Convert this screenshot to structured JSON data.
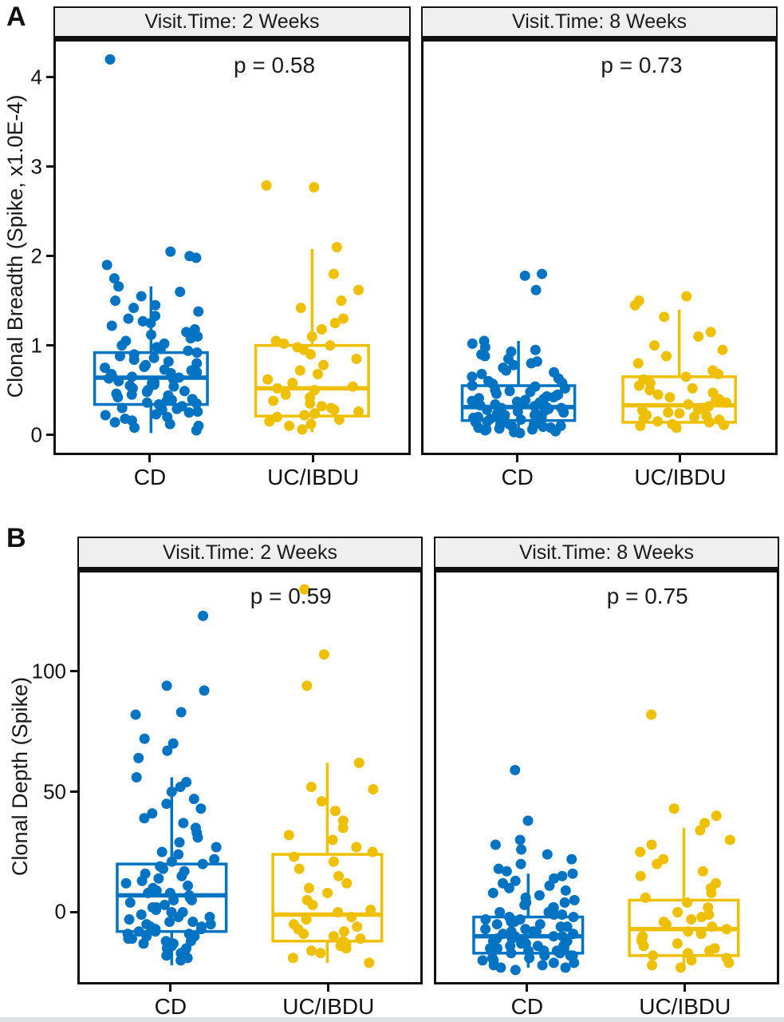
{
  "chart_data": [
    {
      "type": "boxplot",
      "panel_label": "A",
      "ylabel": "Clonal Breadth (Spike, x1.0E-4)",
      "categories": [
        "CD",
        "UC/IBDU"
      ],
      "group_colors": {
        "CD": "#0073C2",
        "UC/IBDU": "#EFC000"
      },
      "group_centers": [
        0.27,
        0.727
      ],
      "y_ticks": [
        0,
        1,
        2,
        3,
        4
      ],
      "y_tick_labels": [
        "0",
        "1",
        "2",
        "3",
        "4"
      ],
      "y_domain": [
        -0.2,
        4.4
      ],
      "grid": false,
      "legend": "none",
      "facets": [
        {
          "label": "Visit.Time: 2 Weeks",
          "p_label": "p = 0.58",
          "groups": [
            {
              "name": "CD",
              "box": {
                "whisker_low": 0.02,
                "q1": 0.34,
                "median": 0.64,
                "q3": 0.92,
                "whisker_high": 1.66
              },
              "points": [
                4.2,
                2.05,
                2.0,
                1.98,
                1.9,
                1.75,
                1.66,
                1.6,
                1.55,
                1.5,
                1.45,
                1.42,
                1.38,
                1.33,
                1.3,
                1.27,
                1.25,
                1.22,
                1.18,
                1.15,
                1.12,
                1.1,
                1.08,
                1.05,
                1.02,
                1.0,
                0.98,
                0.96,
                0.94,
                0.92,
                0.9,
                0.88,
                0.86,
                0.84,
                0.82,
                0.8,
                0.78,
                0.76,
                0.75,
                0.73,
                0.72,
                0.7,
                0.69,
                0.68,
                0.66,
                0.65,
                0.64,
                0.63,
                0.62,
                0.6,
                0.59,
                0.58,
                0.56,
                0.55,
                0.54,
                0.52,
                0.5,
                0.49,
                0.48,
                0.46,
                0.45,
                0.44,
                0.42,
                0.4,
                0.39,
                0.38,
                0.36,
                0.35,
                0.34,
                0.32,
                0.3,
                0.29,
                0.28,
                0.26,
                0.25,
                0.23,
                0.22,
                0.2,
                0.18,
                0.16,
                0.14,
                0.12,
                0.1,
                0.08,
                0.05
              ]
            },
            {
              "name": "UC/IBDU",
              "box": {
                "whisker_low": 0.03,
                "q1": 0.21,
                "median": 0.52,
                "q3": 1.0,
                "whisker_high": 2.08
              },
              "points": [
                2.79,
                2.77,
                2.1,
                1.8,
                1.62,
                1.5,
                1.42,
                1.3,
                1.25,
                1.18,
                1.1,
                1.05,
                1.02,
                1.0,
                0.98,
                0.95,
                0.9,
                0.85,
                0.78,
                0.72,
                0.68,
                0.62,
                0.58,
                0.54,
                0.52,
                0.5,
                0.45,
                0.42,
                0.38,
                0.35,
                0.32,
                0.3,
                0.28,
                0.26,
                0.24,
                0.22,
                0.2,
                0.17,
                0.15,
                0.12,
                0.1,
                0.06
              ]
            }
          ]
        },
        {
          "label": "Visit.Time: 8 Weeks",
          "p_label": "p = 0.73",
          "groups": [
            {
              "name": "CD",
              "box": {
                "whisker_low": 0.02,
                "q1": 0.16,
                "median": 0.31,
                "q3": 0.55,
                "whisker_high": 1.05
              },
              "points": [
                1.8,
                1.78,
                1.62,
                1.05,
                1.02,
                0.98,
                0.95,
                0.93,
                0.9,
                0.88,
                0.85,
                0.82,
                0.8,
                0.78,
                0.75,
                0.72,
                0.7,
                0.68,
                0.65,
                0.63,
                0.6,
                0.58,
                0.57,
                0.55,
                0.54,
                0.52,
                0.5,
                0.49,
                0.48,
                0.46,
                0.45,
                0.44,
                0.43,
                0.42,
                0.41,
                0.4,
                0.39,
                0.38,
                0.37,
                0.36,
                0.35,
                0.34,
                0.33,
                0.32,
                0.31,
                0.3,
                0.3,
                0.29,
                0.28,
                0.27,
                0.26,
                0.26,
                0.25,
                0.24,
                0.23,
                0.22,
                0.22,
                0.21,
                0.2,
                0.2,
                0.19,
                0.18,
                0.18,
                0.17,
                0.16,
                0.16,
                0.15,
                0.14,
                0.14,
                0.13,
                0.12,
                0.12,
                0.11,
                0.1,
                0.1,
                0.09,
                0.08,
                0.08,
                0.07,
                0.06,
                0.06,
                0.05,
                0.04,
                0.03,
                0.02
              ]
            },
            {
              "name": "UC/IBDU",
              "box": {
                "whisker_low": 0.03,
                "q1": 0.14,
                "median": 0.33,
                "q3": 0.65,
                "whisker_high": 1.4
              },
              "points": [
                1.55,
                1.5,
                1.45,
                1.32,
                1.15,
                1.1,
                1.0,
                0.95,
                0.88,
                0.8,
                0.72,
                0.68,
                0.65,
                0.62,
                0.58,
                0.55,
                0.52,
                0.5,
                0.47,
                0.45,
                0.42,
                0.4,
                0.38,
                0.36,
                0.34,
                0.32,
                0.3,
                0.28,
                0.27,
                0.25,
                0.24,
                0.22,
                0.21,
                0.2,
                0.18,
                0.17,
                0.15,
                0.14,
                0.12,
                0.11,
                0.1,
                0.08
              ]
            }
          ]
        }
      ]
    },
    {
      "type": "boxplot",
      "panel_label": "B",
      "ylabel": "Clonal Depth (Spike)",
      "categories": [
        "CD",
        "UC/IBDU"
      ],
      "group_colors": {
        "CD": "#0073C2",
        "UC/IBDU": "#EFC000"
      },
      "group_centers": [
        0.27,
        0.727
      ],
      "y_ticks": [
        0,
        50,
        100
      ],
      "y_tick_labels": [
        "0",
        "50",
        "100"
      ],
      "y_domain": [
        -29,
        141
      ],
      "grid": false,
      "legend": "none",
      "facets": [
        {
          "label": "Visit.Time: 2 Weeks",
          "p_label": "p = 0.59",
          "groups": [
            {
              "name": "CD",
              "box": {
                "whisker_low": -22,
                "q1": -8,
                "median": 7,
                "q3": 20,
                "whisker_high": 56
              },
              "points": [
                123,
                94,
                92,
                83,
                82,
                72,
                70,
                67,
                64,
                56,
                54,
                52,
                50,
                47,
                45,
                43,
                41,
                39,
                37,
                35,
                33,
                31,
                29,
                27,
                25,
                24,
                22,
                21,
                20,
                19,
                18,
                17,
                16,
                15,
                14,
                13,
                12,
                11,
                10,
                9,
                8,
                8,
                7,
                6,
                5,
                5,
                4,
                3,
                2,
                2,
                1,
                0,
                0,
                -1,
                -2,
                -2,
                -3,
                -4,
                -4,
                -5,
                -5,
                -6,
                -6,
                -7,
                -7,
                -8,
                -8,
                -9,
                -9,
                -10,
                -10,
                -11,
                -11,
                -12,
                -12,
                -13,
                -13,
                -14,
                -15,
                -15,
                -16,
                -17,
                -18,
                -19,
                -20
              ]
            },
            {
              "name": "UC/IBDU",
              "box": {
                "whisker_low": -21,
                "q1": -12,
                "median": -1,
                "q3": 24,
                "whisker_high": 62
              },
              "points": [
                134,
                107,
                94,
                62,
                52,
                51,
                46,
                42,
                38,
                35,
                32,
                30,
                27,
                25,
                23,
                21,
                18,
                15,
                12,
                10,
                8,
                5,
                3,
                1,
                0,
                -2,
                -3,
                -5,
                -6,
                -7,
                -8,
                -9,
                -10,
                -11,
                -12,
                -13,
                -14,
                -15,
                -16,
                -17,
                -19,
                -21
              ]
            }
          ]
        },
        {
          "label": "Visit.Time: 8 Weeks",
          "p_label": "p = 0.75",
          "groups": [
            {
              "name": "CD",
              "box": {
                "whisker_low": -23,
                "q1": -17,
                "median": -10,
                "q3": -2,
                "whisker_high": 16
              },
              "points": [
                59,
                38,
                30,
                28,
                26,
                24,
                22,
                20,
                18,
                17,
                16,
                15,
                14,
                13,
                12,
                11,
                10,
                9,
                8,
                7,
                6,
                5,
                4,
                4,
                3,
                2,
                2,
                1,
                0,
                0,
                -1,
                -1,
                -2,
                -2,
                -3,
                -3,
                -4,
                -4,
                -5,
                -5,
                -6,
                -6,
                -7,
                -7,
                -8,
                -8,
                -8,
                -9,
                -9,
                -10,
                -10,
                -10,
                -11,
                -11,
                -12,
                -12,
                -12,
                -13,
                -13,
                -13,
                -14,
                -14,
                -14,
                -15,
                -15,
                -15,
                -16,
                -16,
                -16,
                -17,
                -17,
                -18,
                -18,
                -18,
                -19,
                -19,
                -20,
                -20,
                -21,
                -21,
                -22,
                -22,
                -23,
                -23,
                -24
              ]
            },
            {
              "name": "UC/IBDU",
              "box": {
                "whisker_low": -22,
                "q1": -18,
                "median": -7,
                "q3": 5,
                "whisker_high": 35
              },
              "points": [
                82,
                43,
                40,
                37,
                34,
                30,
                28,
                25,
                22,
                20,
                17,
                15,
                12,
                10,
                8,
                6,
                4,
                2,
                0,
                -1,
                -2,
                -3,
                -4,
                -5,
                -6,
                -7,
                -8,
                -9,
                -10,
                -11,
                -12,
                -13,
                -14,
                -15,
                -16,
                -17,
                -18,
                -19,
                -20,
                -21,
                -22,
                -23
              ]
            }
          ]
        }
      ]
    }
  ]
}
